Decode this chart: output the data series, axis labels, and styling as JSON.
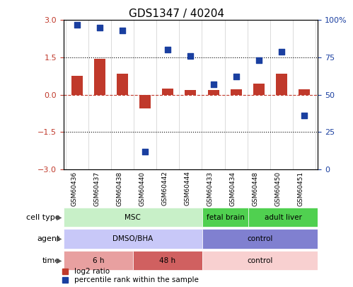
{
  "title": "GDS1347 / 40204",
  "samples": [
    "GSM60436",
    "GSM60437",
    "GSM60438",
    "GSM60440",
    "GSM60442",
    "GSM60444",
    "GSM60433",
    "GSM60434",
    "GSM60448",
    "GSM60450",
    "GSM60451"
  ],
  "log2_ratio": [
    0.75,
    1.45,
    0.85,
    -0.55,
    0.25,
    0.18,
    0.2,
    0.22,
    0.45,
    0.85,
    0.22
  ],
  "percentile_rank": [
    97,
    95,
    93,
    12,
    80,
    76,
    57,
    62,
    73,
    79,
    36
  ],
  "ylim_left": [
    -3,
    3
  ],
  "ylim_right": [
    0,
    100
  ],
  "yticks_left": [
    -3,
    -1.5,
    0,
    1.5,
    3
  ],
  "yticks_right": [
    0,
    25,
    50,
    75,
    100
  ],
  "ytick_labels_right": [
    "0",
    "25",
    "50",
    "75",
    "100%"
  ],
  "hline_values": [
    1.5,
    -1.5,
    0
  ],
  "bar_color": "#c0392b",
  "dot_color": "#1a3fa0",
  "bar_width": 0.5,
  "cell_type_groups": [
    {
      "label": "MSC",
      "start": 0,
      "end": 6,
      "color": "#c8f0c8"
    },
    {
      "label": "fetal brain",
      "start": 6,
      "end": 8,
      "color": "#50d050"
    },
    {
      "label": "adult liver",
      "start": 8,
      "end": 11,
      "color": "#50d050"
    }
  ],
  "agent_groups": [
    {
      "label": "DMSO/BHA",
      "start": 0,
      "end": 6,
      "color": "#c8c8f8"
    },
    {
      "label": "control",
      "start": 6,
      "end": 11,
      "color": "#8080d0"
    }
  ],
  "time_groups": [
    {
      "label": "6 h",
      "start": 0,
      "end": 3,
      "color": "#e8a0a0"
    },
    {
      "label": "48 h",
      "start": 3,
      "end": 6,
      "color": "#d06060"
    },
    {
      "label": "control",
      "start": 6,
      "end": 11,
      "color": "#f8d0d0"
    }
  ],
  "row_labels": [
    "cell type",
    "agent",
    "time"
  ],
  "legend_items": [
    {
      "label": "log2 ratio",
      "color": "#c0392b",
      "marker": "s"
    },
    {
      "label": "percentile rank within the sample",
      "color": "#1a3fa0",
      "marker": "s"
    }
  ],
  "background_color": "#ffffff",
  "plot_bg_color": "#ffffff",
  "tick_label_color_left": "#c0392b",
  "tick_label_color_right": "#1a3fa0"
}
